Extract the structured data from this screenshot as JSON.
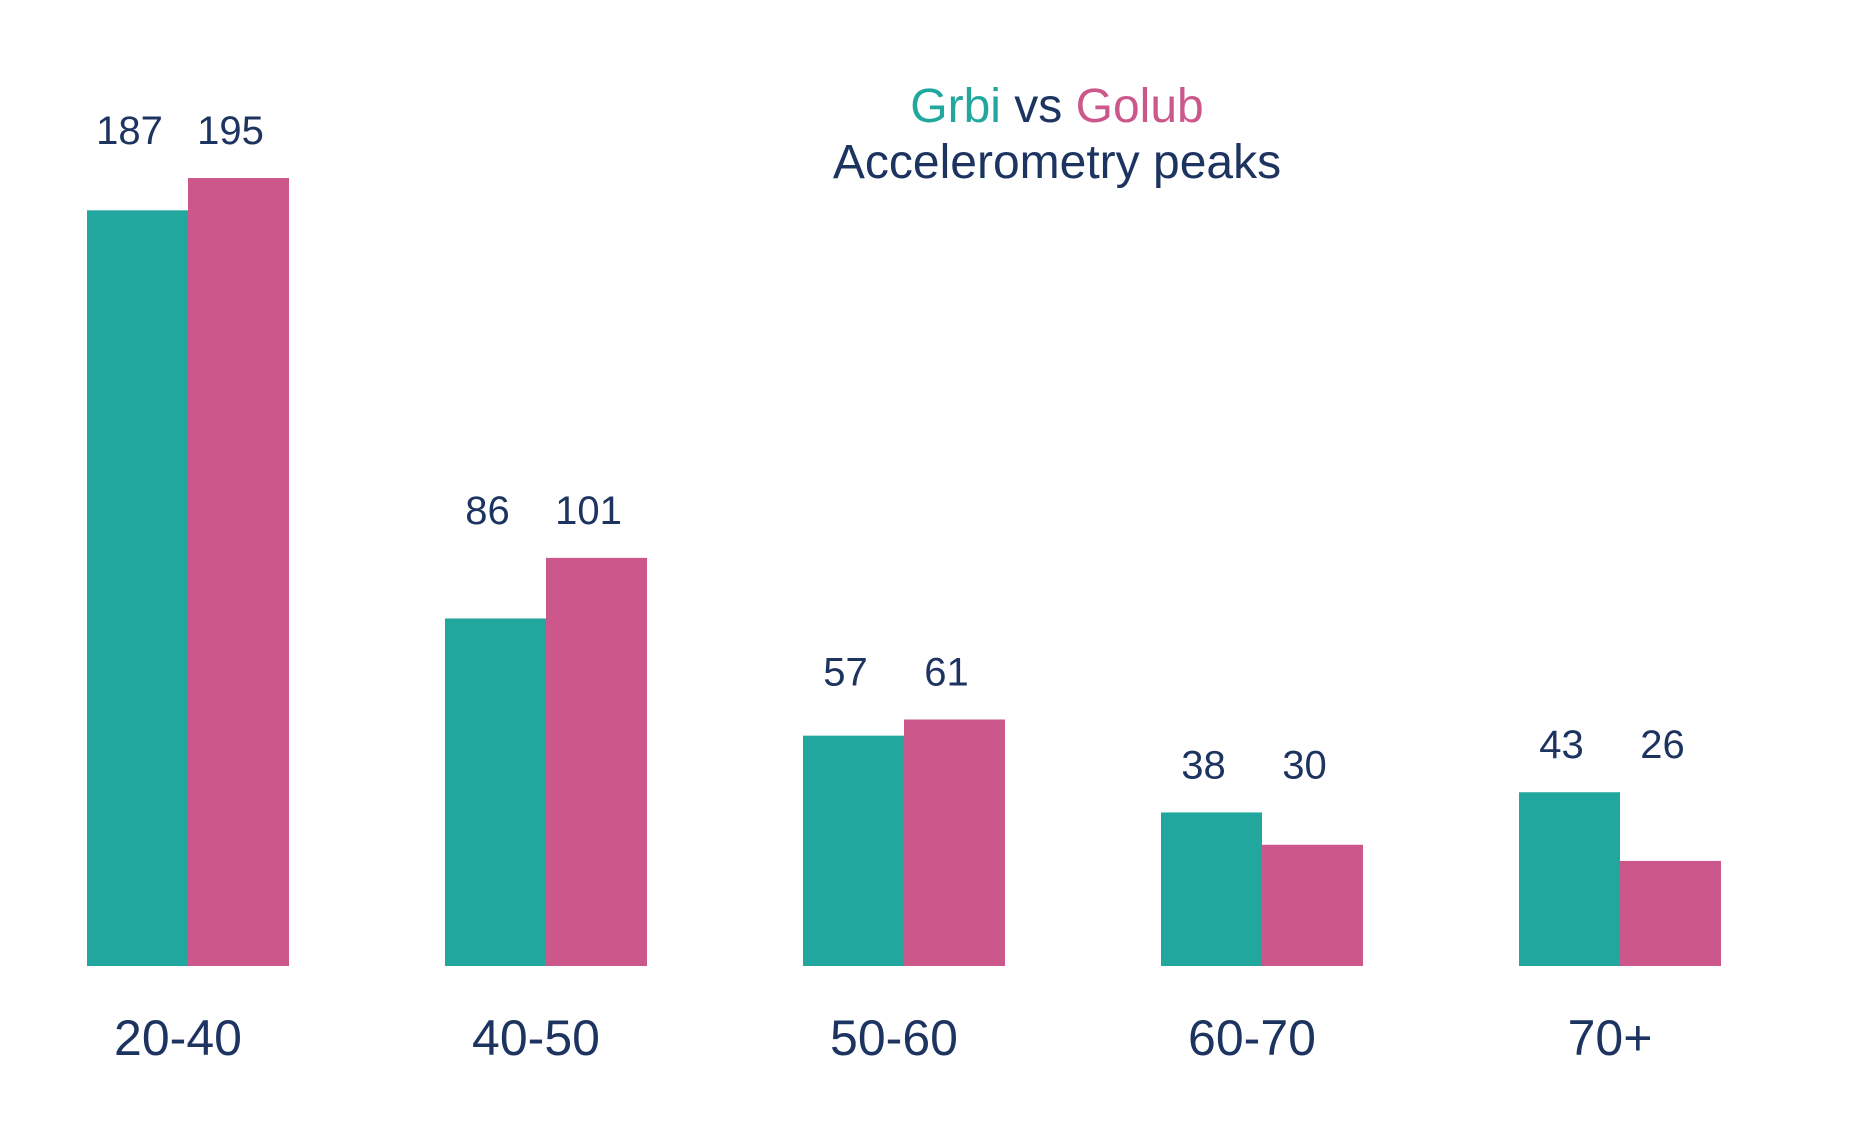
{
  "chart_data": {
    "type": "bar",
    "title": {
      "series_a": "Grbi",
      "connector": " vs ",
      "series_b": "Golub",
      "subtitle": "Accelerometry peaks"
    },
    "categories": [
      "20-40",
      "40-50",
      "50-60",
      "60-70",
      "70+"
    ],
    "series": [
      {
        "name": "Grbi",
        "color": "#21a79d",
        "values": [
          187,
          86,
          57,
          38,
          43
        ]
      },
      {
        "name": "Golub",
        "color": "#cc588b",
        "values": [
          195,
          101,
          61,
          30,
          26
        ]
      }
    ],
    "ylim": [
      0,
      195
    ],
    "grid": false,
    "legend": "none",
    "xlabel": "",
    "ylabel": ""
  }
}
